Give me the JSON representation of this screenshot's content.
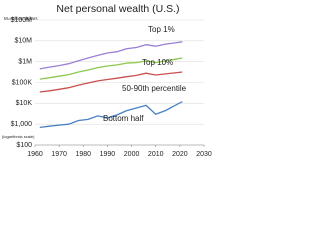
{
  "chart_data": {
    "type": "line",
    "title": "Net personal wealth (U.S.)",
    "y_note": "M=million dollars",
    "scale_note": "(logarithmic scale)",
    "log_y": true,
    "grid": true,
    "x": [
      1962,
      1966,
      1970,
      1974,
      1978,
      1982,
      1986,
      1990,
      1994,
      1998,
      2002,
      2006,
      2010,
      2014,
      2018,
      2021
    ],
    "series": [
      {
        "name": "Top 1%",
        "color": "#9b7fd4",
        "values": [
          450000,
          550000,
          650000,
          800000,
          1100000,
          1500000,
          2000000,
          2600000,
          3000000,
          4200000,
          4800000,
          6500000,
          5500000,
          7000000,
          8000000,
          9000000
        ]
      },
      {
        "name": "Top 10%",
        "color": "#8cc84b",
        "values": [
          145000,
          170000,
          200000,
          240000,
          320000,
          400000,
          520000,
          620000,
          700000,
          850000,
          900000,
          1100000,
          900000,
          1100000,
          1300000,
          1500000
        ]
      },
      {
        "name": "50-90th percentile",
        "color": "#c9504d",
        "values": [
          35000,
          40000,
          47000,
          56000,
          75000,
          95000,
          120000,
          140000,
          160000,
          190000,
          220000,
          280000,
          230000,
          260000,
          290000,
          320000
        ]
      },
      {
        "name": "Bottom half",
        "color": "#4a80c4",
        "values": [
          700,
          800,
          900,
          1000,
          1500,
          1700,
          2500,
          2000,
          2800,
          4500,
          6000,
          8000,
          3000,
          4500,
          8000,
          12000
        ]
      }
    ],
    "xlim": [
      1960,
      2030
    ],
    "xticks": [
      1960,
      1970,
      1980,
      1990,
      2000,
      2010,
      2020,
      2030
    ],
    "ylim": [
      100,
      100000000
    ],
    "yticks": [
      {
        "value": 100,
        "label": "$100"
      },
      {
        "value": 1000,
        "label": "$1,000"
      },
      {
        "value": 10000,
        "label": "$10K"
      },
      {
        "value": 100000,
        "label": "$100K"
      },
      {
        "value": 1000000,
        "label": "$1M"
      },
      {
        "value": 10000000,
        "label": "$10M"
      },
      {
        "value": 100000000,
        "label": "$100M"
      }
    ]
  }
}
